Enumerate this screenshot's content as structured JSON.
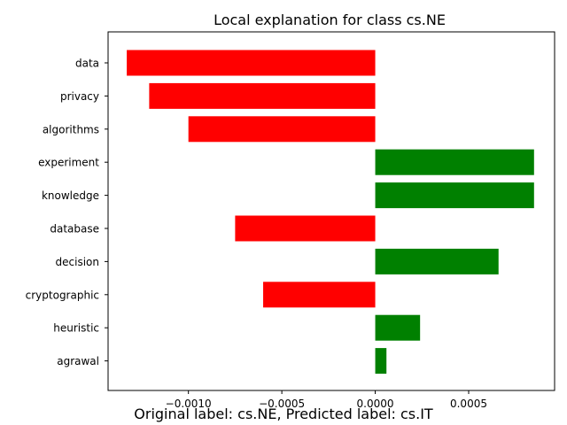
{
  "chart_data": {
    "type": "bar",
    "orientation": "horizontal",
    "title": "Local explanation for class cs.NE",
    "categories": [
      "data",
      "privacy",
      "algorithms",
      "experiment",
      "knowledge",
      "database",
      "decision",
      "cryptographic",
      "heuristic",
      "agrawal"
    ],
    "values": [
      -0.00133,
      -0.00121,
      -0.001,
      0.00085,
      0.00085,
      -0.00075,
      0.00066,
      -0.0006,
      0.00024,
      6e-05
    ],
    "positive_color": "#008000",
    "negative_color": "#ff0000",
    "xlim": [
      -0.00143,
      0.00096
    ],
    "x_ticks": [
      -0.001,
      -0.0005,
      0.0,
      0.0005
    ],
    "x_tick_labels": [
      "−0.0010",
      "−0.0005",
      "0.0000",
      "0.0005"
    ],
    "grid": false
  },
  "caption": "Original label: cs.NE, Predicted label: cs.IT"
}
